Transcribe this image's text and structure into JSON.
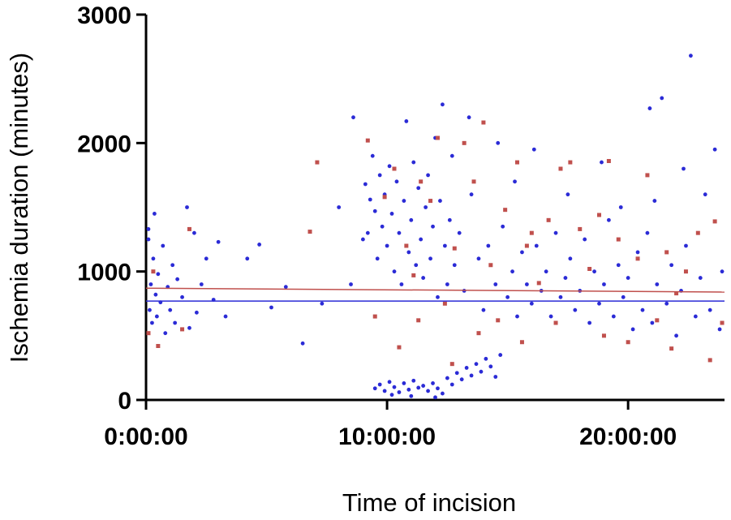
{
  "chart_data": {
    "type": "scatter",
    "title": "",
    "xlabel": "Time of incision",
    "ylabel": "Ischemia duration (minutes)",
    "x_unit": "hours",
    "xlim": [
      0,
      24
    ],
    "ylim": [
      0,
      3000
    ],
    "x_ticks": [
      {
        "value": 0,
        "label": "0:00:00"
      },
      {
        "value": 10,
        "label": "10:00:00"
      },
      {
        "value": 20,
        "label": "20:00:00"
      }
    ],
    "y_ticks": [
      {
        "value": 0,
        "label": "0"
      },
      {
        "value": 1000,
        "label": "1000"
      },
      {
        "value": 2000,
        "label": "2000"
      },
      {
        "value": 3000,
        "label": "3000"
      }
    ],
    "legend": "none",
    "grid": false,
    "series": [
      {
        "color": "#2b2bd6",
        "marker": "circle",
        "trendline": {
          "x": [
            0,
            24
          ],
          "y": [
            770,
            770
          ]
        },
        "points": [
          [
            0.1,
            1330
          ],
          [
            0.1,
            1250
          ],
          [
            0.15,
            700
          ],
          [
            0.2,
            900
          ],
          [
            0.25,
            600
          ],
          [
            0.3,
            1100
          ],
          [
            0.35,
            1450
          ],
          [
            0.4,
            820
          ],
          [
            0.45,
            650
          ],
          [
            0.5,
            980
          ],
          [
            0.6,
            760
          ],
          [
            0.7,
            1200
          ],
          [
            0.8,
            520
          ],
          [
            0.9,
            880
          ],
          [
            1.0,
            700
          ],
          [
            1.1,
            1050
          ],
          [
            1.2,
            600
          ],
          [
            1.3,
            940
          ],
          [
            1.5,
            800
          ],
          [
            1.7,
            1500
          ],
          [
            1.8,
            560
          ],
          [
            2.0,
            1300
          ],
          [
            2.1,
            680
          ],
          [
            2.3,
            900
          ],
          [
            2.5,
            1100
          ],
          [
            2.8,
            780
          ],
          [
            3.0,
            1230
          ],
          [
            3.3,
            650
          ],
          [
            4.2,
            1100
          ],
          [
            4.7,
            1210
          ],
          [
            5.2,
            720
          ],
          [
            5.8,
            880
          ],
          [
            6.5,
            440
          ],
          [
            7.3,
            750
          ],
          [
            8.0,
            1500
          ],
          [
            8.5,
            900
          ],
          [
            8.6,
            2200
          ],
          [
            9.0,
            1250
          ],
          [
            9.1,
            1680
          ],
          [
            9.2,
            1300
          ],
          [
            9.3,
            1560
          ],
          [
            9.4,
            1900
          ],
          [
            9.5,
            1470
          ],
          [
            9.6,
            1100
          ],
          [
            9.7,
            1750
          ],
          [
            9.8,
            1350
          ],
          [
            9.9,
            1600
          ],
          [
            10.0,
            1200
          ],
          [
            10.1,
            1820
          ],
          [
            10.2,
            1450
          ],
          [
            10.3,
            1000
          ],
          [
            10.4,
            1700
          ],
          [
            10.5,
            1300
          ],
          [
            10.6,
            900
          ],
          [
            10.7,
            1550
          ],
          [
            10.8,
            2170
          ],
          [
            10.9,
            1150
          ],
          [
            11.0,
            1400
          ],
          [
            11.1,
            1850
          ],
          [
            11.2,
            1050
          ],
          [
            11.3,
            1650
          ],
          [
            11.4,
            1250
          ],
          [
            11.5,
            950
          ],
          [
            11.6,
            1500
          ],
          [
            11.7,
            1750
          ],
          [
            11.8,
            1100
          ],
          [
            11.9,
            1350
          ],
          [
            12.0,
            2040
          ],
          [
            12.1,
            800
          ],
          [
            12.2,
            1550
          ],
          [
            12.3,
            2300
          ],
          [
            12.4,
            1200
          ],
          [
            12.5,
            900
          ],
          [
            12.6,
            1400
          ],
          [
            12.8,
            1050
          ],
          [
            13.0,
            1300
          ],
          [
            13.2,
            850
          ],
          [
            13.5,
            1600
          ],
          [
            13.8,
            1100
          ],
          [
            14.0,
            700
          ],
          [
            14.2,
            1200
          ],
          [
            14.5,
            900
          ],
          [
            14.8,
            1350
          ],
          [
            15.0,
            800
          ],
          [
            15.2,
            1000
          ],
          [
            15.4,
            650
          ],
          [
            15.6,
            1150
          ],
          [
            15.8,
            900
          ],
          [
            16.0,
            750
          ],
          [
            16.2,
            1200
          ],
          [
            16.4,
            850
          ],
          [
            16.6,
            1000
          ],
          [
            16.8,
            650
          ],
          [
            17.0,
            1300
          ],
          [
            17.2,
            800
          ],
          [
            17.4,
            950
          ],
          [
            17.6,
            1100
          ],
          [
            17.8,
            700
          ],
          [
            18.0,
            850
          ],
          [
            18.2,
            1250
          ],
          [
            18.4,
            600
          ],
          [
            18.6,
            1000
          ],
          [
            18.8,
            750
          ],
          [
            19.0,
            900
          ],
          [
            19.2,
            1400
          ],
          [
            19.4,
            650
          ],
          [
            19.6,
            1050
          ],
          [
            19.8,
            800
          ],
          [
            20.0,
            950
          ],
          [
            20.2,
            550
          ],
          [
            20.4,
            1150
          ],
          [
            20.6,
            700
          ],
          [
            20.8,
            1300
          ],
          [
            21.0,
            600
          ],
          [
            21.2,
            900
          ],
          [
            21.4,
            2350
          ],
          [
            21.6,
            750
          ],
          [
            21.8,
            1050
          ],
          [
            22.0,
            500
          ],
          [
            22.2,
            850
          ],
          [
            22.4,
            1200
          ],
          [
            22.6,
            2680
          ],
          [
            22.8,
            650
          ],
          [
            23.0,
            950
          ],
          [
            23.2,
            1600
          ],
          [
            23.4,
            700
          ],
          [
            23.6,
            1950
          ],
          [
            23.8,
            550
          ],
          [
            23.9,
            1000
          ],
          [
            20.9,
            2270
          ],
          [
            16.1,
            1950
          ],
          [
            17.5,
            1600
          ],
          [
            18.9,
            1850
          ],
          [
            21.1,
            1550
          ],
          [
            22.3,
            1800
          ],
          [
            15.3,
            1700
          ],
          [
            19.7,
            1500
          ],
          [
            14.6,
            2000
          ],
          [
            13.4,
            2200
          ],
          [
            12.7,
            1900
          ],
          [
            9.5,
            90
          ],
          [
            9.7,
            120
          ],
          [
            9.9,
            70
          ],
          [
            10.1,
            140
          ],
          [
            10.3,
            100
          ],
          [
            10.5,
            60
          ],
          [
            10.7,
            130
          ],
          [
            10.9,
            80
          ],
          [
            11.1,
            150
          ],
          [
            11.3,
            95
          ],
          [
            11.5,
            110
          ],
          [
            11.7,
            70
          ],
          [
            11.9,
            130
          ],
          [
            12.1,
            90
          ],
          [
            12.3,
            50
          ],
          [
            12.5,
            170
          ],
          [
            12.7,
            120
          ],
          [
            12.9,
            210
          ],
          [
            13.1,
            160
          ],
          [
            13.3,
            250
          ],
          [
            13.5,
            190
          ],
          [
            13.7,
            280
          ],
          [
            13.9,
            220
          ],
          [
            14.1,
            320
          ],
          [
            14.3,
            260
          ],
          [
            14.5,
            180
          ],
          [
            14.7,
            350
          ],
          [
            10.2,
            40
          ],
          [
            11.0,
            30
          ],
          [
            12.0,
            20
          ]
        ]
      },
      {
        "color": "#c0504d",
        "marker": "square",
        "trendline": {
          "x": [
            0,
            24
          ],
          "y": [
            870,
            840
          ]
        },
        "points": [
          [
            0.1,
            520
          ],
          [
            0.3,
            1000
          ],
          [
            0.5,
            420
          ],
          [
            1.5,
            550
          ],
          [
            1.8,
            1330
          ],
          [
            7.1,
            1850
          ],
          [
            6.8,
            1310
          ],
          [
            9.2,
            2020
          ],
          [
            9.9,
            1580
          ],
          [
            10.3,
            1800
          ],
          [
            10.8,
            1200
          ],
          [
            11.1,
            970
          ],
          [
            11.4,
            1700
          ],
          [
            11.8,
            1550
          ],
          [
            12.1,
            2040
          ],
          [
            12.4,
            750
          ],
          [
            12.8,
            1180
          ],
          [
            13.2,
            2000
          ],
          [
            13.6,
            1700
          ],
          [
            14.0,
            2160
          ],
          [
            14.3,
            1050
          ],
          [
            14.9,
            1480
          ],
          [
            15.4,
            1850
          ],
          [
            15.8,
            1200
          ],
          [
            16.3,
            910
          ],
          [
            16.7,
            1400
          ],
          [
            17.2,
            1800
          ],
          [
            17.6,
            1850
          ],
          [
            18.0,
            1330
          ],
          [
            18.4,
            1020
          ],
          [
            18.8,
            1440
          ],
          [
            19.2,
            1860
          ],
          [
            19.6,
            1250
          ],
          [
            20.0,
            450
          ],
          [
            20.4,
            1100
          ],
          [
            20.8,
            1750
          ],
          [
            21.2,
            620
          ],
          [
            21.6,
            1150
          ],
          [
            22.0,
            830
          ],
          [
            22.4,
            1000
          ],
          [
            22.9,
            1300
          ],
          [
            23.4,
            310
          ],
          [
            23.9,
            600
          ],
          [
            10.5,
            410
          ],
          [
            11.3,
            620
          ],
          [
            12.7,
            280
          ],
          [
            13.8,
            520
          ],
          [
            15.6,
            450
          ],
          [
            17.0,
            600
          ],
          [
            19.0,
            500
          ],
          [
            21.8,
            400
          ],
          [
            23.6,
            1390
          ],
          [
            16.0,
            1300
          ],
          [
            14.6,
            620
          ],
          [
            9.5,
            650
          ]
        ]
      }
    ]
  }
}
